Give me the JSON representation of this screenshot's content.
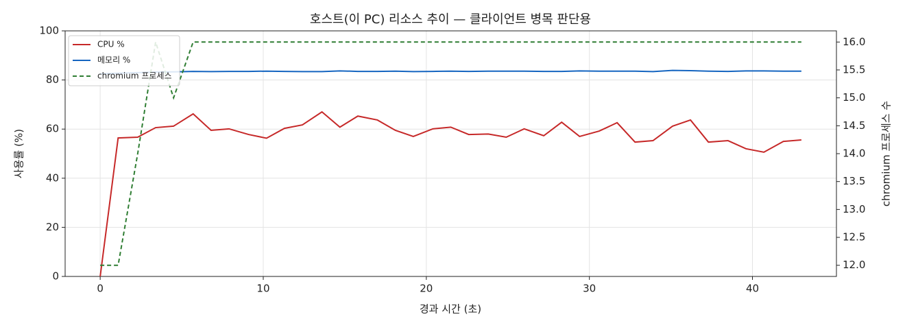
{
  "chart_data": {
    "type": "line",
    "title": "호스트(이 PC) 리소스 추이 — 클라이언트 병목 판단용",
    "xlabel": "경과 시간 (초)",
    "ylabel": "사용률 (%)",
    "y2label": "chromium 프로세스 수",
    "x": [
      0,
      1.1,
      2.3,
      3.4,
      4.5,
      5.7,
      6.8,
      7.9,
      9.1,
      10.2,
      11.3,
      12.4,
      13.6,
      14.7,
      15.8,
      17.0,
      18.1,
      19.2,
      20.4,
      21.5,
      22.6,
      23.8,
      24.9,
      26.0,
      27.2,
      28.3,
      29.4,
      30.6,
      31.7,
      32.8,
      33.9,
      35.1,
      36.2,
      37.3,
      38.5,
      39.6,
      40.7,
      41.9,
      43.0
    ],
    "series": [
      {
        "name": "CPU %",
        "color": "#c62828",
        "style": "solid",
        "values": [
          0,
          56.4,
          56.7,
          60.6,
          61.2,
          66.2,
          59.5,
          60.1,
          57.8,
          56.3,
          60.3,
          61.7,
          67.0,
          60.8,
          65.3,
          63.7,
          59.5,
          57.0,
          60.1,
          60.8,
          57.8,
          58.0,
          56.7,
          60.1,
          57.3,
          62.8,
          57.0,
          59.2,
          62.6,
          54.7,
          55.3,
          61.2,
          63.7,
          54.7,
          55.3,
          52.0,
          50.6,
          55.0,
          55.6
        ]
      },
      {
        "name": "메모리 %",
        "color": "#1565c0",
        "style": "solid",
        "values": [
          82.5,
          82.8,
          83.0,
          83.2,
          83.3,
          83.5,
          83.4,
          83.5,
          83.5,
          83.6,
          83.5,
          83.4,
          83.4,
          83.7,
          83.5,
          83.5,
          83.6,
          83.4,
          83.5,
          83.6,
          83.5,
          83.6,
          83.6,
          83.6,
          83.5,
          83.5,
          83.7,
          83.6,
          83.6,
          83.6,
          83.4,
          83.9,
          83.8,
          83.6,
          83.5,
          83.7,
          83.7,
          83.6,
          83.6
        ]
      },
      {
        "name": "chromium 프로세스",
        "color": "#2e7d32",
        "style": "dashed",
        "axis": "y2",
        "values": [
          12,
          12,
          14,
          16,
          15,
          16,
          16,
          16,
          16,
          16,
          16,
          16,
          16,
          16,
          16,
          16,
          16,
          16,
          16,
          16,
          16,
          16,
          16,
          16,
          16,
          16,
          16,
          16,
          16,
          16,
          16,
          16,
          16,
          16,
          16,
          16,
          16,
          16,
          16
        ]
      }
    ],
    "xlim": [
      -2.15,
      45.15
    ],
    "xticks": [
      0,
      10,
      20,
      30,
      40
    ],
    "ylim": [
      0,
      100
    ],
    "yticks": [
      0,
      20,
      40,
      60,
      80,
      100
    ],
    "y2lim": [
      11.8,
      16.2
    ],
    "y2ticks": [
      {
        "value": 12,
        "label": "12.0"
      },
      12.5,
      {
        "value": 13,
        "label": "13.0"
      },
      13.5,
      {
        "value": 14,
        "label": "14.0"
      },
      14.5,
      {
        "value": 15,
        "label": "15.0"
      },
      15.5,
      {
        "value": 16,
        "label": "16.0"
      }
    ],
    "grid": true,
    "legend": "upper-left"
  }
}
